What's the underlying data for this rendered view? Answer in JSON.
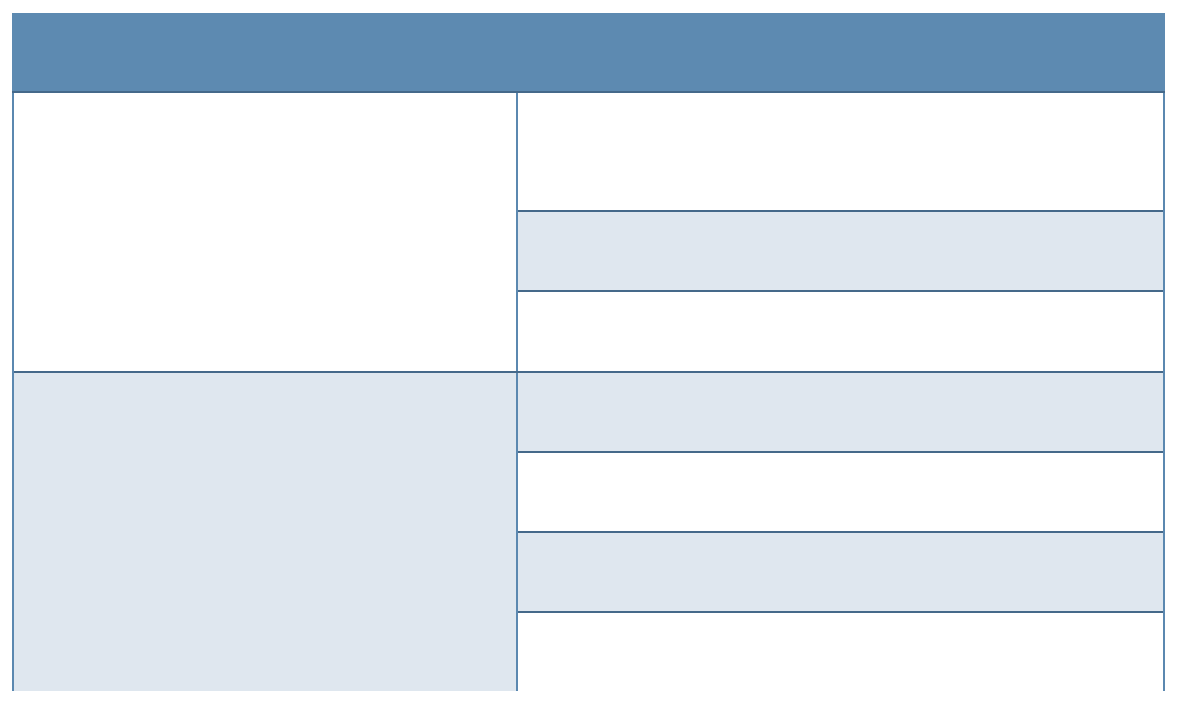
{
  "colors": {
    "header": "#5d8ab1",
    "band": "#dfe7ef",
    "row": "#ffffff",
    "border_vertical": "#5b88b0",
    "border_horizontal": "#45698a"
  },
  "table": {
    "header": "",
    "left_cells": [
      "",
      ""
    ],
    "right_cells": [
      "",
      "",
      "",
      "",
      "",
      "",
      ""
    ]
  }
}
